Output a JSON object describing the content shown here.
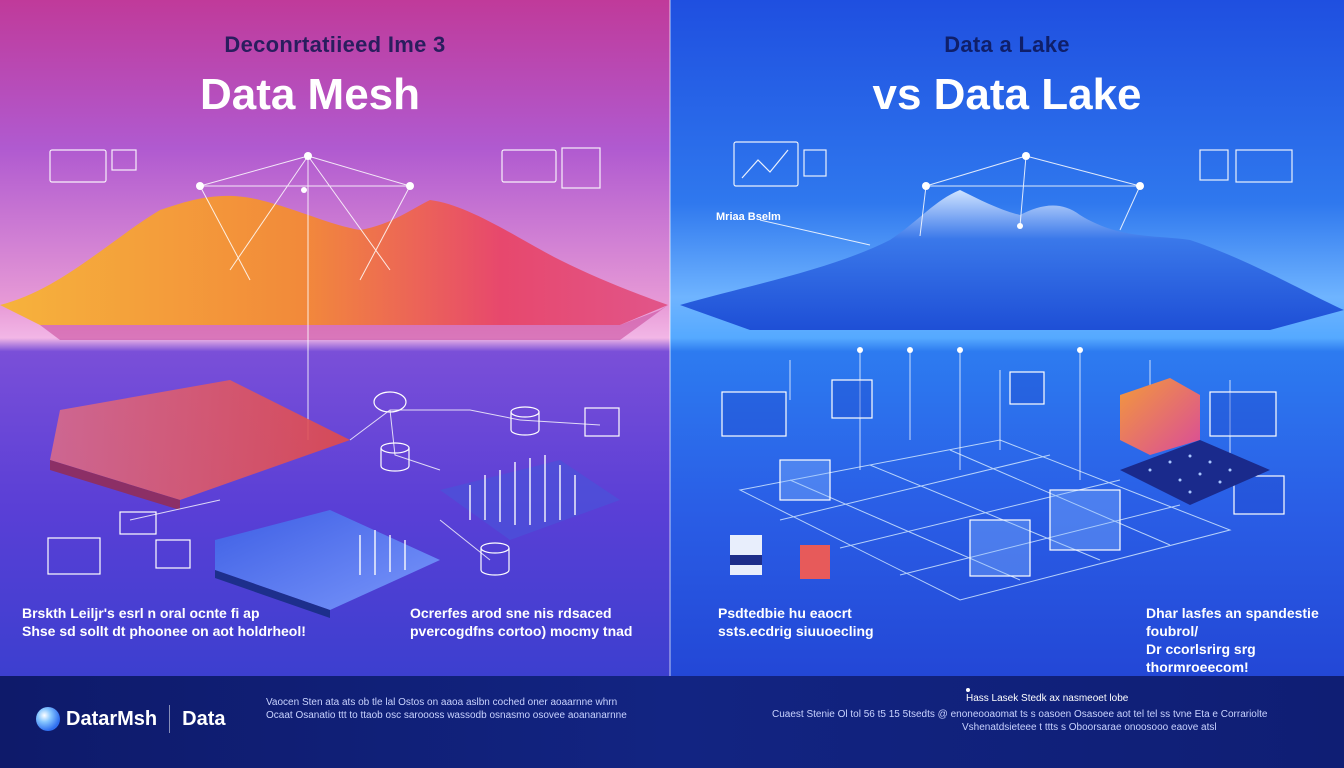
{
  "left": {
    "subtitle": "Deconrtatiieed Ime 3",
    "title": "Data Mesh",
    "caption_left": [
      "Brskth Leiljr's esrl n oral ocnte fi ap",
      "Shse sd sollt dt phoonee on aot holdrheol!"
    ],
    "caption_right": [
      "Ocrerfes arod sne nis rdsaced",
      "pvercogdfns cortoo) mocmy tnad"
    ]
  },
  "right": {
    "subtitle": "Data a Lake",
    "title": "vs Data Lake",
    "label_left": "Mriaa Bselm",
    "caption_left": [
      "Psdtedbie hu eaocrt",
      "ssts.ecdrig siuuoecling"
    ],
    "caption_right": [
      "Dhar lasfes an spandestie foubrol/",
      "Dr ccorlsrirg srg thormroeecom!"
    ]
  },
  "footer": {
    "brand": "DatarMsh",
    "brand_right": "Data",
    "left_text": [
      "Vaocen Sten ata ats ob tle lal Ostos on aaoa aslbn coched oner aoaarnne whrn",
      "Ocaat Osanatio ttt to ttaob osc saroooss wassodb osnasmo osovee aoananarnne"
    ],
    "right_head": "Hass Lasek Stedk ax nasmeoet lobe",
    "right_text": [
      "Cuaest Stenie Ol tol 56 t5 15 5tsedts @ enoneooaomat ts s oasoen Osasoee aot tel tel ss tvne Eta e Corrariolte",
      "Vshenatdsieteee t ttts s Oboorsarae onoosooo eaove atsl"
    ]
  },
  "colors": {
    "left_accent": "#f3a33c",
    "left_peak": "#e94a6d",
    "right_accent": "#2d6df0",
    "footer_bg": "#122482"
  }
}
